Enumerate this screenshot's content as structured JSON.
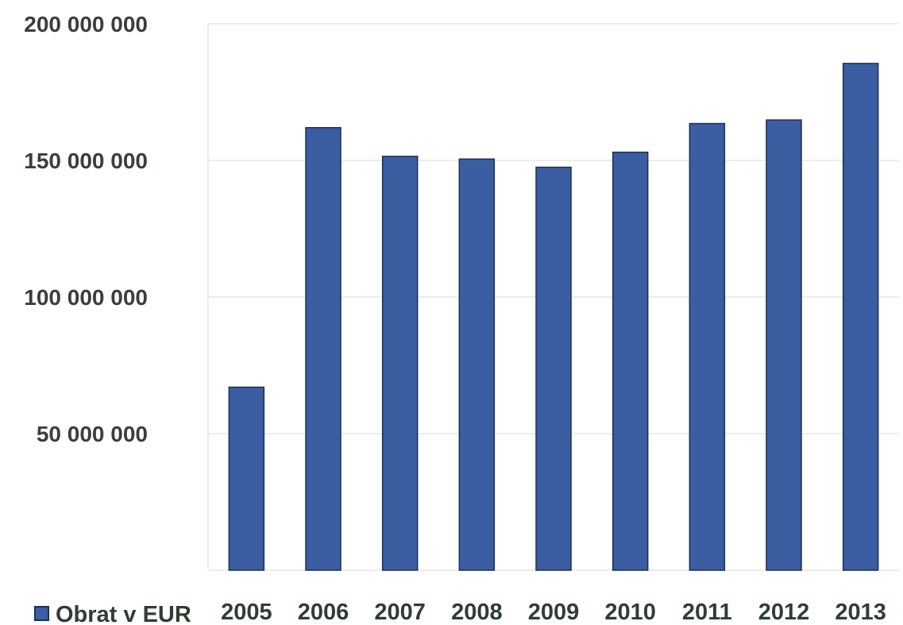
{
  "chart_data": {
    "type": "bar",
    "categories": [
      "2005",
      "2006",
      "2007",
      "2008",
      "2009",
      "2010",
      "2011",
      "2012",
      "2013"
    ],
    "series": [
      {
        "name": "Obrat v EUR",
        "values": [
          67000000,
          162000000,
          151500000,
          150500000,
          147500000,
          153000000,
          163500000,
          164800000,
          185500000
        ]
      }
    ],
    "ylim": [
      0,
      200000000
    ],
    "yticks": [
      0,
      50000000,
      100000000,
      150000000,
      200000000
    ],
    "ytick_labels": [
      "",
      "50 000 000",
      "100 000 000",
      "150 000 000",
      "200 000 000"
    ],
    "grid": true,
    "legend_position": "bottom-left",
    "colors": {
      "bar": "#3a5ea1",
      "bar_edge": "#1e2f57",
      "grid": "#ececec",
      "text": "#2f3e33"
    }
  }
}
